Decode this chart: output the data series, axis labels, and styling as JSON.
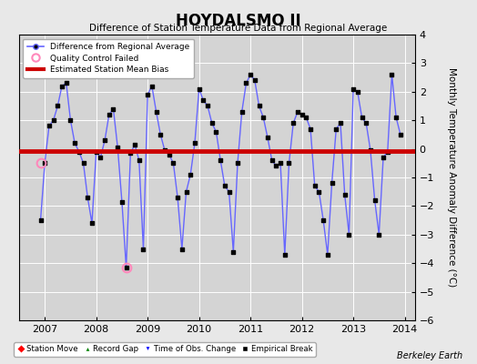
{
  "title": "HOYDALSMO II",
  "subtitle": "Difference of Station Temperature Data from Regional Average",
  "ylabel": "Monthly Temperature Anomaly Difference (°C)",
  "bias": -0.07,
  "xlim_start": 2006.5,
  "xlim_end": 2014.2,
  "ylim_bottom": -6.0,
  "ylim_top": 4.0,
  "yticks": [
    -6,
    -5,
    -4,
    -3,
    -2,
    -1,
    0,
    1,
    2,
    3,
    4
  ],
  "xticks": [
    2007,
    2008,
    2009,
    2010,
    2011,
    2012,
    2013,
    2014
  ],
  "background_color": "#e8e8e8",
  "plot_bg_color": "#d4d4d4",
  "line_color": "#6666ff",
  "marker_color": "#000000",
  "bias_color": "#cc0000",
  "qc_fail_color": "#ff88bb",
  "watermark": "Berkeley Earth",
  "data": [
    [
      2006.917,
      -2.5
    ],
    [
      2007.0,
      -0.5
    ],
    [
      2007.083,
      0.8
    ],
    [
      2007.167,
      1.0
    ],
    [
      2007.25,
      1.5
    ],
    [
      2007.333,
      2.2
    ],
    [
      2007.417,
      2.3
    ],
    [
      2007.5,
      1.0
    ],
    [
      2007.583,
      0.2
    ],
    [
      2007.667,
      -0.1
    ],
    [
      2007.75,
      -0.5
    ],
    [
      2007.833,
      -1.7
    ],
    [
      2007.917,
      -2.6
    ],
    [
      2008.0,
      -0.1
    ],
    [
      2008.083,
      -0.3
    ],
    [
      2008.167,
      0.3
    ],
    [
      2008.25,
      1.2
    ],
    [
      2008.333,
      1.4
    ],
    [
      2008.417,
      0.05
    ],
    [
      2008.5,
      -1.85
    ],
    [
      2008.583,
      -4.15
    ],
    [
      2008.667,
      -0.15
    ],
    [
      2008.75,
      0.15
    ],
    [
      2008.833,
      -0.4
    ],
    [
      2008.917,
      -3.5
    ],
    [
      2009.0,
      1.9
    ],
    [
      2009.083,
      2.2
    ],
    [
      2009.167,
      1.3
    ],
    [
      2009.25,
      0.5
    ],
    [
      2009.333,
      -0.05
    ],
    [
      2009.417,
      -0.2
    ],
    [
      2009.5,
      -0.5
    ],
    [
      2009.583,
      -1.7
    ],
    [
      2009.667,
      -3.5
    ],
    [
      2009.75,
      -1.5
    ],
    [
      2009.833,
      -0.9
    ],
    [
      2009.917,
      0.2
    ],
    [
      2010.0,
      2.1
    ],
    [
      2010.083,
      1.7
    ],
    [
      2010.167,
      1.5
    ],
    [
      2010.25,
      0.9
    ],
    [
      2010.333,
      0.6
    ],
    [
      2010.417,
      -0.4
    ],
    [
      2010.5,
      -1.3
    ],
    [
      2010.583,
      -1.5
    ],
    [
      2010.667,
      -3.6
    ],
    [
      2010.75,
      -0.5
    ],
    [
      2010.833,
      1.3
    ],
    [
      2010.917,
      2.3
    ],
    [
      2011.0,
      2.6
    ],
    [
      2011.083,
      2.4
    ],
    [
      2011.167,
      1.5
    ],
    [
      2011.25,
      1.1
    ],
    [
      2011.333,
      0.4
    ],
    [
      2011.417,
      -0.4
    ],
    [
      2011.5,
      -0.6
    ],
    [
      2011.583,
      -0.5
    ],
    [
      2011.667,
      -3.7
    ],
    [
      2011.75,
      -0.5
    ],
    [
      2011.833,
      0.9
    ],
    [
      2011.917,
      1.3
    ],
    [
      2012.0,
      1.2
    ],
    [
      2012.083,
      1.1
    ],
    [
      2012.167,
      0.7
    ],
    [
      2012.25,
      -1.3
    ],
    [
      2012.333,
      -1.5
    ],
    [
      2012.417,
      -2.5
    ],
    [
      2012.5,
      -3.7
    ],
    [
      2012.583,
      -1.2
    ],
    [
      2012.667,
      0.7
    ],
    [
      2012.75,
      0.9
    ],
    [
      2012.833,
      -1.6
    ],
    [
      2012.917,
      -3.0
    ],
    [
      2013.0,
      2.1
    ],
    [
      2013.083,
      2.0
    ],
    [
      2013.167,
      1.1
    ],
    [
      2013.25,
      0.9
    ],
    [
      2013.333,
      -0.05
    ],
    [
      2013.417,
      -1.8
    ],
    [
      2013.5,
      -3.0
    ],
    [
      2013.583,
      -0.3
    ],
    [
      2013.667,
      -0.1
    ],
    [
      2013.75,
      2.6
    ],
    [
      2013.833,
      1.1
    ],
    [
      2013.917,
      0.5
    ]
  ],
  "qc_fail_points": [
    [
      2006.917,
      -0.5
    ],
    [
      2008.583,
      -4.15
    ]
  ]
}
